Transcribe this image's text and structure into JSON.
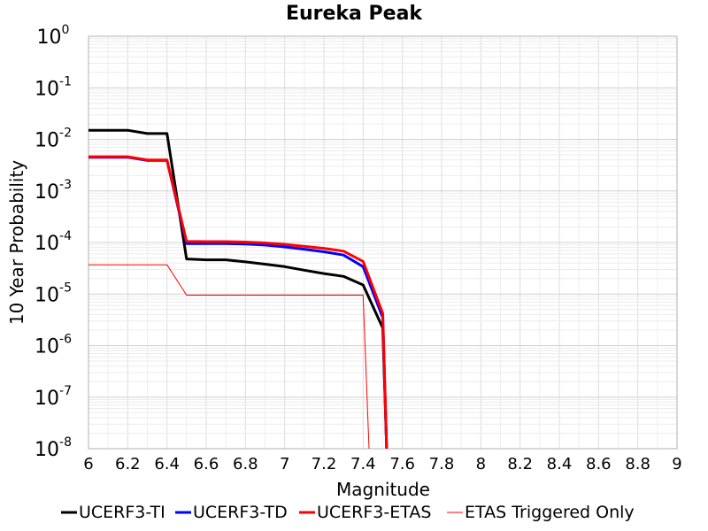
{
  "chart_data": {
    "type": "line",
    "title": "Eureka Peak",
    "xlabel": "Magnitude",
    "ylabel": "10 Year Probability",
    "xlim": [
      6,
      9
    ],
    "ylim": [
      1e-08,
      1
    ],
    "y_scale": "log",
    "grid": true,
    "legend_position": "bottom",
    "x_ticks": [
      6,
      6.2,
      6.4,
      6.6,
      6.8,
      7,
      7.2,
      7.4,
      7.6,
      7.8,
      8,
      8.2,
      8.4,
      8.6,
      8.8,
      9
    ],
    "x_tick_labels": [
      "6",
      "6.2",
      "6.4",
      "6.6",
      "6.8",
      "7",
      "7.2",
      "7.4",
      "7.6",
      "7.8",
      "8",
      "8.2",
      "8.4",
      "8.6",
      "8.8",
      "9"
    ],
    "y_ticks": [
      {
        "value": 1,
        "base": "10",
        "exp": "0"
      },
      {
        "value": 0.1,
        "base": "10",
        "exp": "-1"
      },
      {
        "value": 0.01,
        "base": "10",
        "exp": "-2"
      },
      {
        "value": 0.001,
        "base": "10",
        "exp": "-3"
      },
      {
        "value": 0.0001,
        "base": "10",
        "exp": "-4"
      },
      {
        "value": 1e-05,
        "base": "10",
        "exp": "-5"
      },
      {
        "value": 1e-06,
        "base": "10",
        "exp": "-6"
      },
      {
        "value": 1e-07,
        "base": "10",
        "exp": "-7"
      },
      {
        "value": 1e-08,
        "base": "10",
        "exp": "-8"
      }
    ],
    "series": [
      {
        "name": "UCERF3-TI",
        "color": "#000000",
        "width": 3,
        "x": [
          6.0,
          6.2,
          6.3,
          6.4,
          6.5,
          6.6,
          6.7,
          6.8,
          6.9,
          7.0,
          7.1,
          7.2,
          7.3,
          7.4,
          7.5,
          7.52
        ],
        "y": [
          0.015,
          0.015,
          0.013,
          0.013,
          4.8e-05,
          4.6e-05,
          4.6e-05,
          4.2e-05,
          3.8e-05,
          3.4e-05,
          2.9e-05,
          2.5e-05,
          2.2e-05,
          1.5e-05,
          2.2e-06,
          1e-08
        ]
      },
      {
        "name": "UCERF3-TD",
        "color": "#0000ff",
        "width": 3,
        "x": [
          6.0,
          6.2,
          6.3,
          6.4,
          6.5,
          6.6,
          6.7,
          6.8,
          6.9,
          7.0,
          7.1,
          7.2,
          7.3,
          7.4,
          7.5,
          7.52
        ],
        "y": [
          0.0045,
          0.0045,
          0.0039,
          0.0039,
          9.5e-05,
          9.5e-05,
          9.5e-05,
          9.3e-05,
          8.9e-05,
          8.2e-05,
          7.4e-05,
          6.6e-05,
          5.7e-05,
          3.4e-05,
          3.5e-06,
          1e-08
        ]
      },
      {
        "name": "UCERF3-ETAS",
        "color": "#ff0000",
        "width": 3,
        "x": [
          6.0,
          6.2,
          6.3,
          6.4,
          6.5,
          6.6,
          6.7,
          6.8,
          6.9,
          7.0,
          7.1,
          7.2,
          7.3,
          7.4,
          7.5,
          7.52
        ],
        "y": [
          0.0046,
          0.0046,
          0.004,
          0.004,
          0.000105,
          0.000104,
          0.000104,
          0.000102,
          9.8e-05,
          9.2e-05,
          8.4e-05,
          7.7e-05,
          6.8e-05,
          4.3e-05,
          4.2e-06,
          1e-08
        ]
      },
      {
        "name": "ETAS Triggered Only",
        "color": "#ff0000",
        "width": 1,
        "x": [
          6.0,
          6.4,
          6.5,
          7.4,
          7.43
        ],
        "y": [
          3.7e-05,
          3.7e-05,
          9.5e-06,
          9.5e-06,
          1e-08
        ]
      }
    ]
  }
}
